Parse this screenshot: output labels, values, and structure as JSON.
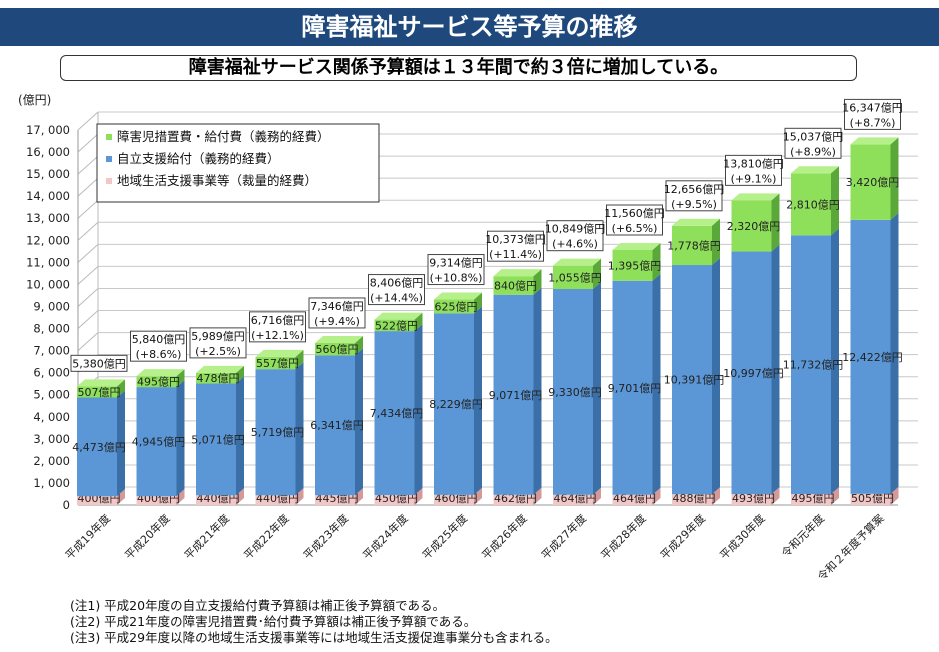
{
  "banner_title": "障害福祉サービス等予算の推移",
  "subtitle": "障害福祉サービス関係予算額は１３年間で約３倍に増加している。",
  "chart_data": {
    "type": "bar",
    "stacked": true,
    "ylabel": "(億円)",
    "ylim": [
      0,
      17000
    ],
    "yticks": [
      0,
      1000,
      2000,
      3000,
      4000,
      5000,
      6000,
      7000,
      8000,
      9000,
      10000,
      11000,
      12000,
      13000,
      14000,
      15000,
      16000,
      17000
    ],
    "grid": true,
    "legend_position": "top-left",
    "categories": [
      "平成19年度",
      "平成20年度",
      "平成21年度",
      "平成22年度",
      "平成23年度",
      "平成24年度",
      "平成25年度",
      "平成26年度",
      "平成27年度",
      "平成28年度",
      "平成29年度",
      "平成30年度",
      "令和元年度",
      "令和２年度予算案"
    ],
    "series": [
      {
        "name": "地域生活支援事業等（裁量的経費）",
        "color": "#f4c7c7",
        "values": [
          400,
          400,
          440,
          440,
          445,
          450,
          460,
          462,
          464,
          464,
          488,
          493,
          495,
          505
        ]
      },
      {
        "name": "自立支援給付（義務的経費）",
        "color": "#5b97d6",
        "values": [
          4473,
          4945,
          5071,
          5719,
          6341,
          7434,
          8229,
          9071,
          9330,
          9701,
          10391,
          10997,
          11732,
          12422
        ]
      },
      {
        "name": "障害児措置費・給付費（義務的経費）",
        "color": "#8ee05a",
        "values": [
          507,
          495,
          478,
          557,
          560,
          522,
          625,
          840,
          1055,
          1395,
          1778,
          2320,
          2810,
          3420
        ]
      }
    ],
    "totals": [
      5380,
      5840,
      5989,
      6716,
      7346,
      8406,
      9314,
      10373,
      10849,
      11560,
      12656,
      13810,
      15037,
      16347
    ],
    "growth": [
      "",
      "+8.6%",
      "+2.5%",
      "+12.1%",
      "+9.4%",
      "+14.4%",
      "+10.8%",
      "+11.4%",
      "+4.6%",
      "+6.5%",
      "+9.5%",
      "+9.1%",
      "+8.9%",
      "+8.7%"
    ],
    "unit_suffix": "億円",
    "legend_order": [
      2,
      1,
      0
    ]
  },
  "notes": [
    "(注1) 平成20年度の自立支援給付費予算額は補正後予算額である。",
    "(注2) 平成21年度の障害児措置費･給付費予算額は補正後予算額である。",
    "(注3) 平成29年度以降の地域生活支援事業等には地域生活支援促進事業分も含まれる。"
  ]
}
